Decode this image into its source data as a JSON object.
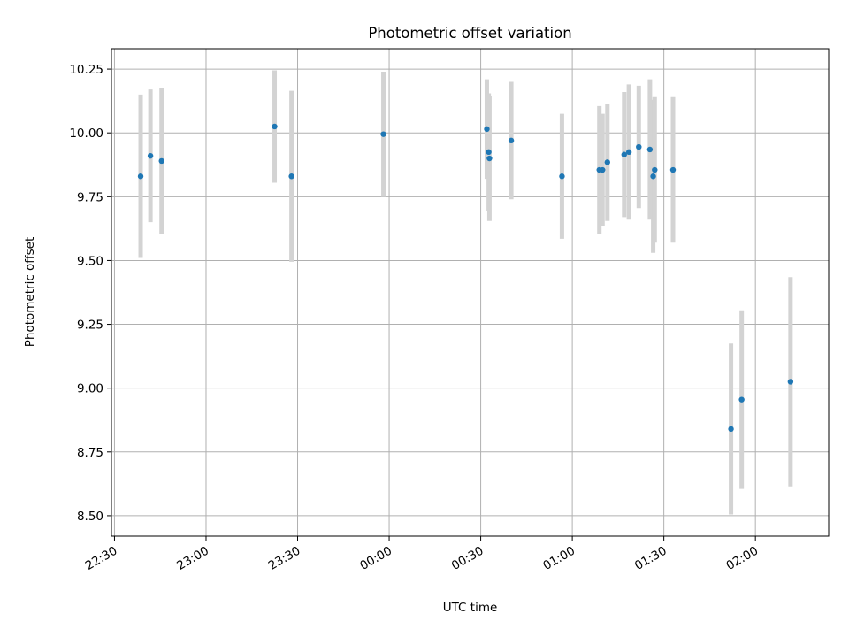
{
  "chart_data": {
    "type": "scatter",
    "title": "Photometric offset variation",
    "xlabel": "UTC time",
    "ylabel": "Photometric offset",
    "x_tick_labels": [
      "22:30",
      "23:00",
      "23:30",
      "00:00",
      "00:30",
      "01:00",
      "01:30",
      "02:00"
    ],
    "y_tick_labels": [
      "8.50",
      "8.75",
      "9.00",
      "9.25",
      "9.50",
      "9.75",
      "10.00",
      "10.25"
    ],
    "xlim": [
      "22:29",
      "02:24"
    ],
    "ylim": [
      8.42,
      10.33
    ],
    "grid": true,
    "series": [
      {
        "points": [
          {
            "x": "22:38:34",
            "y": 9.83,
            "err": 0.32
          },
          {
            "x": "22:41:47",
            "y": 9.91,
            "err": 0.26
          },
          {
            "x": "22:45:26",
            "y": 9.89,
            "err": 0.285
          },
          {
            "x": "23:22:28",
            "y": 10.025,
            "err": 0.22
          },
          {
            "x": "23:28:00",
            "y": 9.83,
            "err": 0.335
          },
          {
            "x": "23:58:07",
            "y": 9.995,
            "err": 0.245
          },
          {
            "x": "00:32:00",
            "y": 10.015,
            "err": 0.195
          },
          {
            "x": "00:32:37",
            "y": 9.925,
            "err": 0.23
          },
          {
            "x": "00:32:51",
            "y": 9.9,
            "err": 0.245
          },
          {
            "x": "00:40:00",
            "y": 9.97,
            "err": 0.23
          },
          {
            "x": "00:56:37",
            "y": 9.83,
            "err": 0.245
          },
          {
            "x": "01:08:52",
            "y": 9.855,
            "err": 0.25
          },
          {
            "x": "01:09:54",
            "y": 9.855,
            "err": 0.22
          },
          {
            "x": "01:11:30",
            "y": 9.885,
            "err": 0.23
          },
          {
            "x": "01:17:00",
            "y": 9.915,
            "err": 0.245
          },
          {
            "x": "01:18:33",
            "y": 9.925,
            "err": 0.265
          },
          {
            "x": "01:21:47",
            "y": 9.945,
            "err": 0.24
          },
          {
            "x": "01:25:26",
            "y": 9.935,
            "err": 0.275
          },
          {
            "x": "01:26:30",
            "y": 9.83,
            "err": 0.3
          },
          {
            "x": "01:27:00",
            "y": 9.855,
            "err": 0.285
          },
          {
            "x": "01:33:00",
            "y": 9.855,
            "err": 0.285
          },
          {
            "x": "01:52:00",
            "y": 8.84,
            "err": 0.335
          },
          {
            "x": "01:55:30",
            "y": 8.955,
            "err": 0.35
          },
          {
            "x": "02:11:30",
            "y": 9.025,
            "err": 0.41
          }
        ]
      }
    ],
    "colors": {
      "marker": "#1f77b4",
      "errorbar": "#d3d3d3",
      "grid": "#b0b0b0"
    }
  }
}
